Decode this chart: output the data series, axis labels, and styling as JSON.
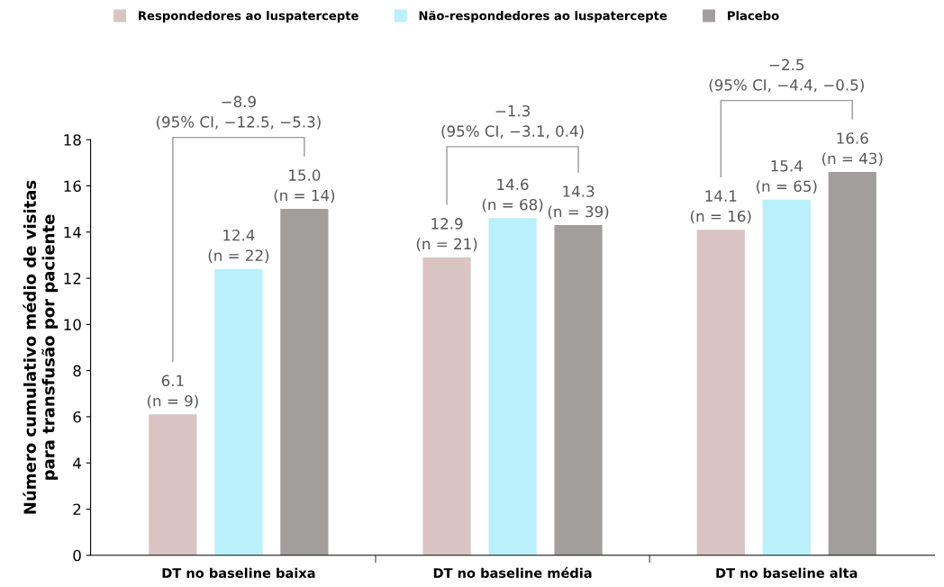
{
  "chart_data": {
    "type": "bar",
    "ylabel": "Número cumulativo médio de visitas\npara transfusão por paciente",
    "categories": [
      "DT no baseline baixa",
      "DT no baseline média",
      "DT no baseline alta"
    ],
    "series": [
      {
        "name": "Respondedores ao luspatercepte",
        "color": "#d9c3c3",
        "values": [
          6.1,
          12.9,
          14.1
        ],
        "value_labels": [
          "6.1\n(n = 9)",
          "12.9\n(n = 21)",
          "14.1\n(n = 16)"
        ]
      },
      {
        "name": "Não-respondedores ao luspatercepte",
        "color": "#b9f0fb",
        "values": [
          12.4,
          14.6,
          15.4
        ],
        "value_labels": [
          "12.4\n(n = 22)",
          "14.6\n(n = 68)",
          "15.4\n(n = 65)"
        ]
      },
      {
        "name": "Placebo",
        "color": "#a39e9e",
        "values": [
          15.0,
          14.3,
          16.6
        ],
        "value_labels": [
          "15.0\n(n = 14)",
          "14.3\n(n = 39)",
          "16.6\n(n = 43)"
        ]
      }
    ],
    "annotations": [
      "−8.9\n(95% CI, −12.5, −5.3)",
      "−1.3\n(95% CI, −3.1, 0.4)",
      "−2.5\n(95% CI, −4.4, −0.5)"
    ],
    "ylim": [
      0,
      18
    ],
    "yticks": [
      0,
      2,
      4,
      6,
      8,
      10,
      12,
      14,
      16,
      18
    ],
    "grid": false,
    "legend": "top"
  }
}
